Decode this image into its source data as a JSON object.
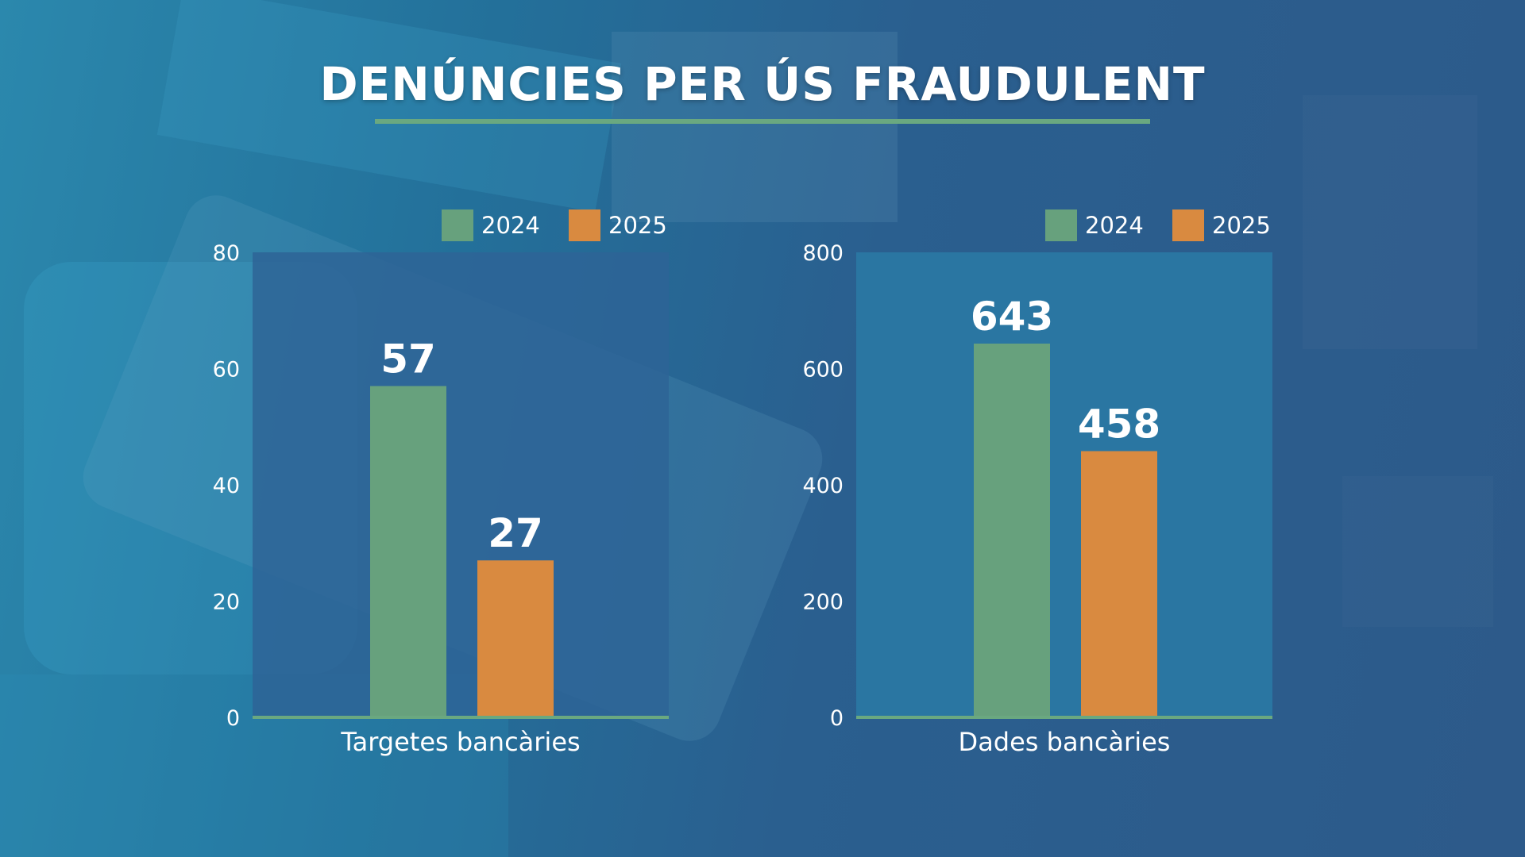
{
  "title": "DENÚNCIES PER ÚS FRAUDULENT",
  "colors": {
    "s2024": "#67a17d",
    "s2025": "#d98a40",
    "baseline": "#6aa880"
  },
  "chart_data": [
    {
      "type": "bar",
      "categories": [
        "Targetes bancàries"
      ],
      "series": [
        {
          "name": "2024",
          "values": [
            57
          ]
        },
        {
          "name": "2025",
          "values": [
            27
          ]
        }
      ],
      "ylim": [
        0,
        80
      ],
      "yticks": [
        "0",
        "20",
        "40",
        "60",
        "80"
      ],
      "data_labels": [
        "57",
        "27"
      ],
      "legend": "top-right",
      "grid": false
    },
    {
      "type": "bar",
      "categories": [
        "Dades bancàries"
      ],
      "series": [
        {
          "name": "2024",
          "values": [
            643
          ]
        },
        {
          "name": "2025",
          "values": [
            458
          ]
        }
      ],
      "ylim": [
        0,
        800
      ],
      "yticks": [
        "0",
        "200",
        "400",
        "600",
        "800"
      ],
      "data_labels": [
        "643",
        "458"
      ],
      "legend": "top-right",
      "grid": false
    }
  ]
}
